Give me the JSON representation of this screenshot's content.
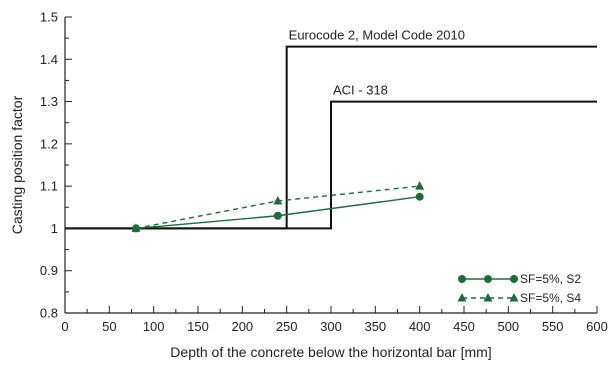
{
  "chart_data": {
    "type": "line",
    "xlabel": "Depth of the concrete below the horizontal bar [mm]",
    "ylabel": "Casting position factor",
    "xlim": [
      0,
      600
    ],
    "ylim": [
      0.8,
      1.5
    ],
    "x_ticks": [
      0,
      50,
      100,
      150,
      200,
      250,
      300,
      350,
      400,
      450,
      500,
      550,
      600
    ],
    "x_tick_labels": [
      "0",
      "50",
      "100",
      "150",
      "200",
      "250",
      "300",
      "350",
      "400",
      "450",
      "500",
      "550",
      "600"
    ],
    "y_ticks": [
      0.8,
      0.9,
      1.0,
      1.1,
      1.2,
      1.3,
      1.4,
      1.5
    ],
    "y_tick_labels": [
      "0.8",
      "0.9",
      "1",
      "1.1",
      "1.2",
      "1.3",
      "1.4",
      "1.5"
    ],
    "grid": false,
    "legend_position": "bottom-right",
    "colors": {
      "data": "#1e6b3a",
      "code": "#111111"
    },
    "code_lines": [
      {
        "label": "Eurocode 2, Model Code 2010",
        "x": [
          0,
          250,
          250,
          600
        ],
        "y": [
          1.0,
          1.0,
          1.43,
          1.43
        ]
      },
      {
        "label": "ACI - 318",
        "x": [
          0,
          300,
          300,
          600
        ],
        "y": [
          1.0,
          1.0,
          1.3,
          1.3
        ]
      }
    ],
    "series": [
      {
        "name": "SF=5%, S2",
        "marker": "circle",
        "line": "solid",
        "x": [
          80,
          240,
          400
        ],
        "y": [
          1.0,
          1.03,
          1.075
        ]
      },
      {
        "name": "SF=5%, S4",
        "marker": "triangle",
        "line": "dashed",
        "x": [
          80,
          240,
          400
        ],
        "y": [
          1.0,
          1.065,
          1.1
        ]
      }
    ]
  }
}
